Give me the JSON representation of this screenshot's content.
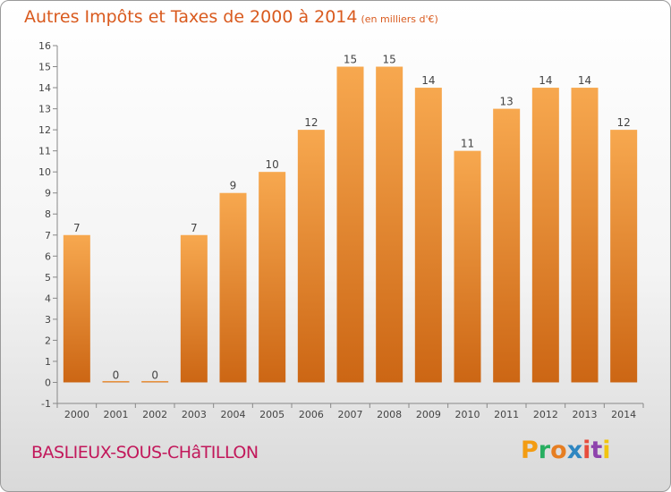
{
  "header": {
    "title": "Autres Impôts et Taxes de 2000 à 2014",
    "subtitle": "(en milliers d'€)"
  },
  "footer": {
    "place": "BASLIEUX-SOUS-CHâTILLON",
    "logo": "Proxiti",
    "logo_letters": [
      "P",
      "r",
      "o",
      "x",
      "i",
      "t",
      "i"
    ],
    "logo_colors": [
      "#f39c12",
      "#27ae60",
      "#e67e22",
      "#2e86c1",
      "#e74c3c",
      "#8e44ad",
      "#f1c40f"
    ]
  },
  "chart_data": {
    "type": "bar",
    "categories": [
      "2000",
      "2001",
      "2002",
      "2003",
      "2004",
      "2005",
      "2006",
      "2007",
      "2008",
      "2009",
      "2010",
      "2011",
      "2012",
      "2013",
      "2014"
    ],
    "values": [
      7,
      0,
      0,
      7,
      9,
      10,
      12,
      15,
      15,
      14,
      11,
      13,
      14,
      14,
      12
    ],
    "data_labels": [
      "7",
      "0",
      "0",
      "7",
      "9",
      "10",
      "12",
      "15",
      "15",
      "14",
      "11",
      "13",
      "14",
      "14",
      "12"
    ],
    "title": "Autres Impôts et Taxes de 2000 à 2014",
    "subtitle": "(en milliers d'€)",
    "xlabel": "",
    "ylabel": "",
    "ylim": [
      -1,
      16
    ],
    "yticks": [
      -1,
      0,
      1,
      2,
      3,
      4,
      5,
      6,
      7,
      8,
      9,
      10,
      11,
      12,
      13,
      14,
      15,
      16
    ],
    "grid": false,
    "colors": {
      "bar_light": "#f7a84f",
      "bar_dark": "#cc6614",
      "axis": "#888888",
      "text": "#444444"
    }
  }
}
